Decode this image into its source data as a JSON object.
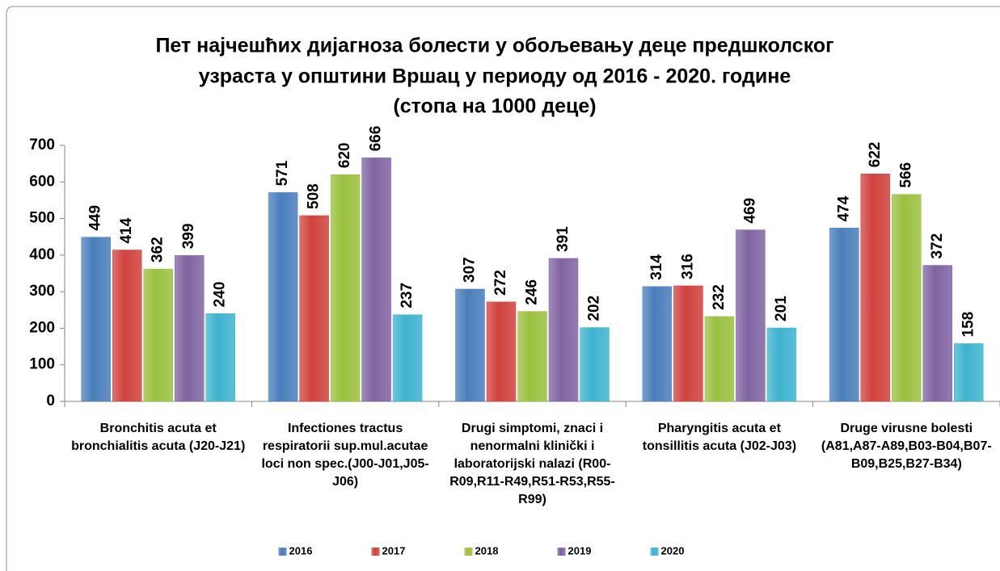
{
  "chart_data": {
    "type": "bar",
    "title": [
      "Пет најчешћих дијагноза болести у обољевању деце предшколског",
      "узраста у општини Вршац у периоду од 2016 - 2020. године",
      "(стопа на 1000 деце)"
    ],
    "categories": [
      "Bronchitis acuta et bronchialitis acuta (J20-J21)",
      "Infectiones tractus respiratorii sup.mul.acutae loci non spec.(J00-J01,J05-J06)",
      "Drugi simptomi, znaci i nenormalni klinički i laboratorijski nalazi (R00-R09,R11-R49,R51-R53,R55-R99)",
      "Pharyngitis acuta et tonsillitis acuta (J02-J03)",
      "Druge virusne bolesti (A81,A87-A89,B03-B04,B07-B09,B25,B27-B34)"
    ],
    "series": [
      {
        "name": "2016",
        "color": "#4a7ebb",
        "values": [
          449,
          571,
          307,
          314,
          474
        ]
      },
      {
        "name": "2017",
        "color": "#d0423e",
        "values": [
          414,
          508,
          272,
          316,
          622
        ]
      },
      {
        "name": "2018",
        "color": "#9bc03f",
        "values": [
          362,
          620,
          246,
          232,
          566
        ]
      },
      {
        "name": "2019",
        "color": "#8064a2",
        "values": [
          399,
          666,
          391,
          469,
          372
        ]
      },
      {
        "name": "2020",
        "color": "#3fb3cf",
        "values": [
          240,
          237,
          202,
          201,
          158
        ]
      }
    ],
    "ylim": [
      0,
      700
    ],
    "yticks": [
      0,
      100,
      200,
      300,
      400,
      500,
      600,
      700
    ],
    "legend": "bottom"
  }
}
